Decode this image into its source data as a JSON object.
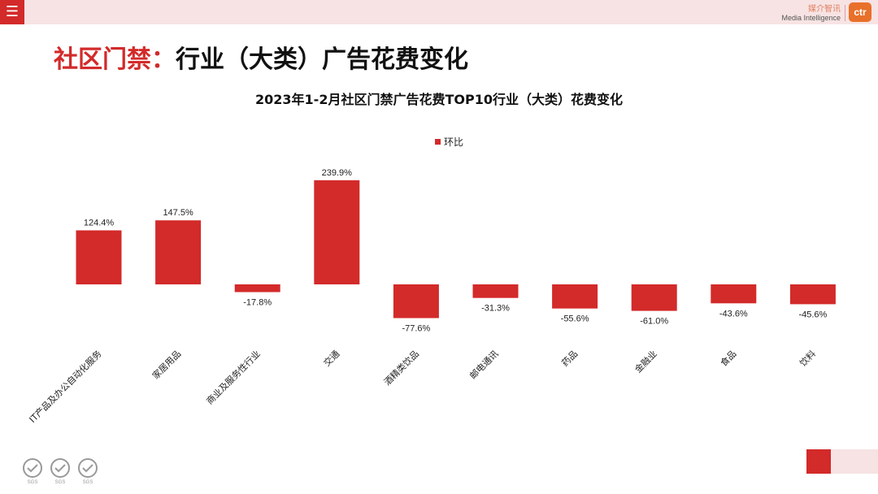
{
  "header": {
    "menu_icon": "hamburger-icon",
    "brand_cn": "媒介智讯",
    "brand_en": "Media Intelligence",
    "logo_text": "ctr"
  },
  "page": {
    "title_accent": "社区门禁：",
    "title_rest": "行业（大类）广告花费变化"
  },
  "colors": {
    "bar": "#d32a2a",
    "accent": "#d32a2a",
    "topbar": "#f7e3e3"
  },
  "chart_data": {
    "type": "bar",
    "title": "2023年1-2月社区门禁广告花费TOP10行业（大类）花费变化",
    "categories": [
      "IT产品及办公自动化服务",
      "家居用品",
      "商业及服务性行业",
      "交通",
      "酒精类饮品",
      "邮电通讯",
      "药品",
      "金融业",
      "食品",
      "饮料"
    ],
    "series": [
      {
        "name": "环比",
        "values": [
          124.4,
          147.5,
          -17.8,
          239.9,
          -77.6,
          -31.3,
          -55.6,
          -61.0,
          -43.6,
          -45.6
        ],
        "labels": [
          "124.4%",
          "147.5%",
          "-17.8%",
          "239.9%",
          "-77.6%",
          "-31.3%",
          "-55.6%",
          "-61.0%",
          "-43.6%",
          "-45.6%"
        ]
      }
    ],
    "legend": "top-center",
    "grid": false,
    "yaxis_visible": false
  },
  "footer": {
    "certification_badges": [
      "SGS",
      "SGS",
      "SGS"
    ]
  }
}
